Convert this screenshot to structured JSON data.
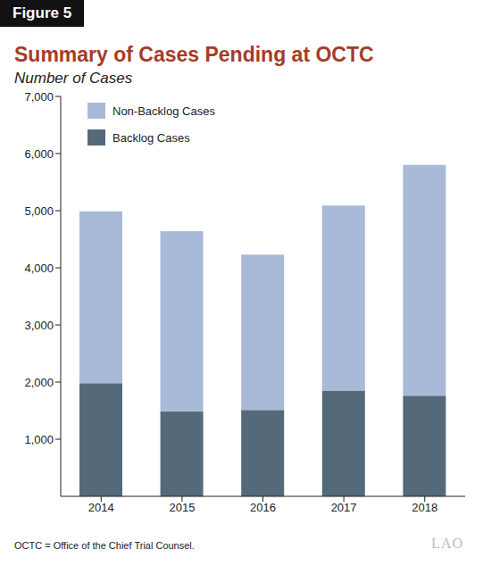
{
  "chart_data": {
    "type": "bar",
    "figure_label": "Figure 5",
    "title": "Summary of Cases Pending at OCTC",
    "subtitle": "Number of Cases",
    "note": "OCTC = Office of the Chief Trial Counsel.",
    "logo": "LAO",
    "categories": [
      "2014",
      "2015",
      "2016",
      "2017",
      "2018"
    ],
    "series": [
      {
        "name": "Backlog Cases",
        "color": "#546a7b",
        "values": [
          1980,
          1490,
          1510,
          1850,
          1760
        ]
      },
      {
        "name": "Non-Backlog Cases",
        "color": "#a9b9d8",
        "values": [
          3010,
          3150,
          2720,
          3240,
          4040
        ]
      }
    ],
    "stacked": true,
    "ylim": [
      0,
      7000
    ],
    "yticks": [
      {
        "value": 1000,
        "label": "1,000"
      },
      {
        "value": 2000,
        "label": "2,000"
      },
      {
        "value": 3000,
        "label": "3,000"
      },
      {
        "value": 4000,
        "label": "4,000"
      },
      {
        "value": 5000,
        "label": "5,000"
      },
      {
        "value": 6000,
        "label": "6,000"
      },
      {
        "value": 7000,
        "label": "7,000"
      }
    ],
    "grid": false,
    "legend": "upper left"
  }
}
